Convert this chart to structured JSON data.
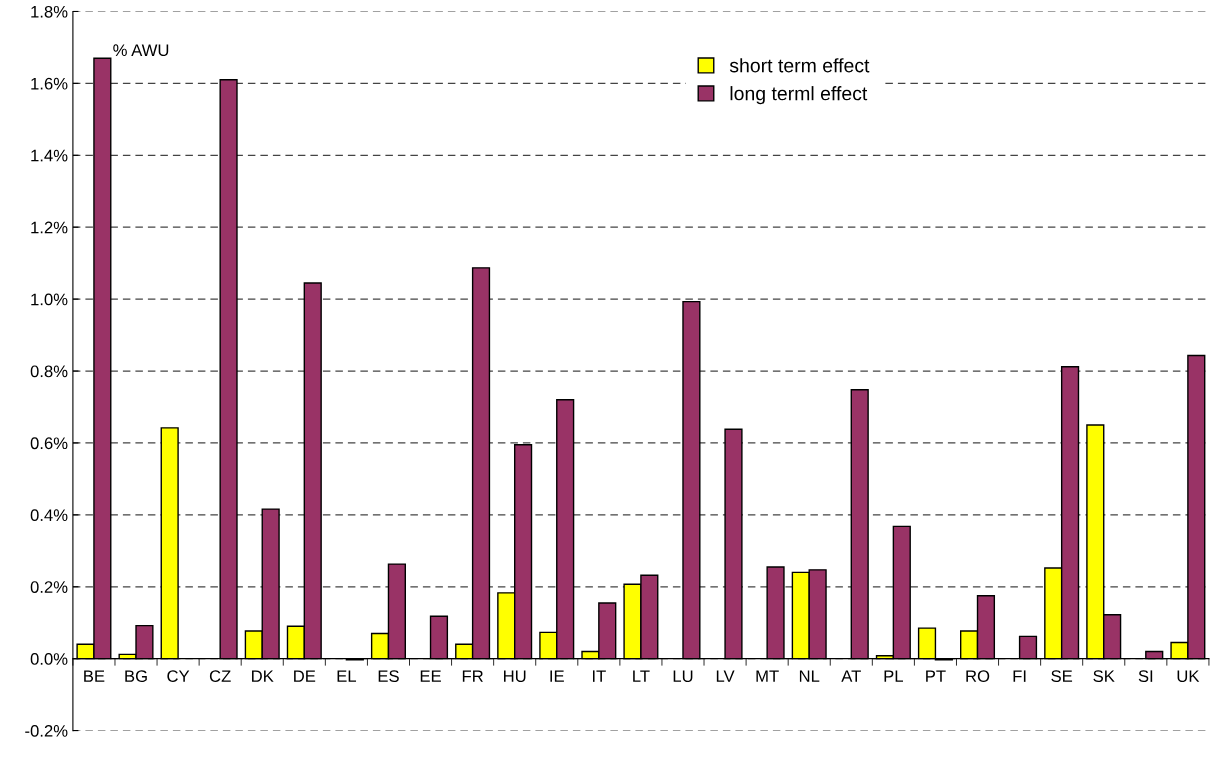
{
  "chart_data": {
    "type": "bar",
    "categories": [
      "BE",
      "BG",
      "CY",
      "CZ",
      "DK",
      "DE",
      "EL",
      "ES",
      "EE",
      "FR",
      "HU",
      "IE",
      "IT",
      "LT",
      "LU",
      "LV",
      "MT",
      "NL",
      "AT",
      "PL",
      "PT",
      "RO",
      "FI",
      "SE",
      "SK",
      "SI",
      "UK"
    ],
    "series": [
      {
        "name": "short term effect",
        "color": "#ffff00",
        "values": [
          0.04,
          0.012,
          0.642,
          null,
          0.077,
          0.09,
          null,
          0.07,
          null,
          0.04,
          0.183,
          0.073,
          0.02,
          0.207,
          null,
          null,
          null,
          0.24,
          null,
          0.008,
          0.085,
          0.077,
          null,
          0.252,
          0.65,
          null,
          0.045
        ]
      },
      {
        "name": "long terml effect",
        "color": "#993366",
        "values": [
          1.67,
          0.092,
          null,
          1.61,
          0.416,
          1.045,
          -0.003,
          0.263,
          0.118,
          1.087,
          0.595,
          0.72,
          0.155,
          0.232,
          0.993,
          0.638,
          0.255,
          0.247,
          0.748,
          0.368,
          -0.003,
          0.175,
          0.062,
          0.812,
          0.122,
          0.02,
          0.843
        ]
      }
    ],
    "ylim": [
      -0.2,
      1.8
    ],
    "yticks": [
      {
        "value": -0.2,
        "label": "-0.2%"
      },
      {
        "value": 0,
        "label": "0.0%"
      },
      {
        "value": 0.2,
        "label": "0.2%"
      },
      {
        "value": 0.4,
        "label": "0.4%"
      },
      {
        "value": 0.6,
        "label": "0.6%"
      },
      {
        "value": 0.8,
        "label": "0.8%"
      },
      {
        "value": 1.0,
        "label": "1.0%"
      },
      {
        "value": 1.2,
        "label": "1.2%"
      },
      {
        "value": 1.4,
        "label": "1.4%"
      },
      {
        "value": 1.6,
        "label": "1.6%"
      },
      {
        "value": 1.8,
        "label": "1.8%"
      }
    ],
    "annotations": [
      "% AWU"
    ],
    "grid": "y",
    "line_style": "dashed",
    "legend": "top right"
  }
}
